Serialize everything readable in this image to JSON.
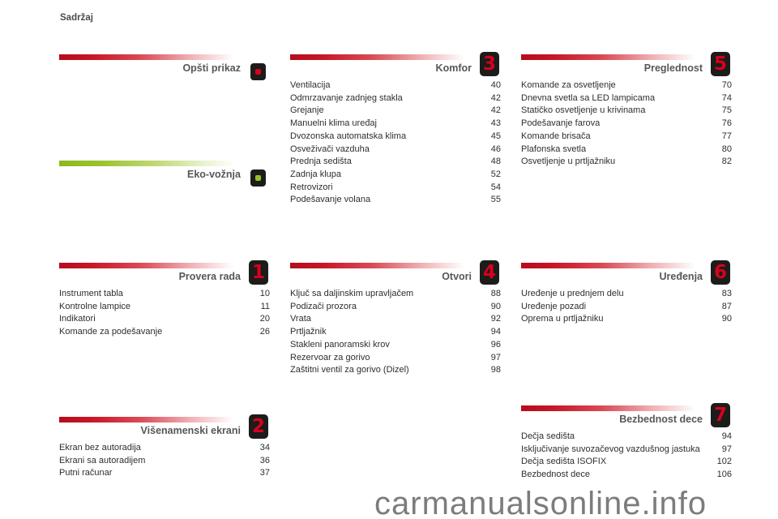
{
  "page": {
    "title": "Sadržaj",
    "watermark": "carmanualsonline.info"
  },
  "colors": {
    "accent_red": "#d8001f",
    "accent_green": "#95bf23",
    "badge_background": "#1c1c1a",
    "heading_text": "#57575a",
    "item_text": "#2e2e2e",
    "watermark_text": "#7c7c7c"
  },
  "sections": [
    {
      "id": "opsti-prikaz",
      "title": "Opšti prikaz",
      "badge": "",
      "accent": "red",
      "items": []
    },
    {
      "id": "eko-voznja",
      "title": "Eko-vožnja",
      "badge": "",
      "accent": "green",
      "items": []
    },
    {
      "id": "provera-rada",
      "title": "Provera rada",
      "badge": "1",
      "accent": "red",
      "items": [
        {
          "label": "Instrument tabla",
          "page": "10"
        },
        {
          "label": "Kontrolne lampice",
          "page": "11"
        },
        {
          "label": "Indikatori",
          "page": "20"
        },
        {
          "label": "Komande za podešavanje",
          "page": "26"
        }
      ]
    },
    {
      "id": "visenamenski-ekrani",
      "title": "Višenamenski ekrani",
      "badge": "2",
      "accent": "red",
      "items": [
        {
          "label": "Ekran bez autoradija",
          "page": "34"
        },
        {
          "label": "Ekrani sa autoradijem",
          "page": "36"
        },
        {
          "label": "Putni računar",
          "page": "37"
        }
      ]
    },
    {
      "id": "komfor",
      "title": "Komfor",
      "badge": "3",
      "accent": "red",
      "items": [
        {
          "label": "Ventilacija",
          "page": "40"
        },
        {
          "label": "Odmrzavanje zadnjeg stakla",
          "page": "42"
        },
        {
          "label": "Grejanje",
          "page": "42"
        },
        {
          "label": "Manuelni klima uređaj",
          "page": "43"
        },
        {
          "label": "Dvozonska automatska klima",
          "page": "45"
        },
        {
          "label": "Osveživači vazduha",
          "page": "46"
        },
        {
          "label": "Prednja sedišta",
          "page": "48"
        },
        {
          "label": "Zadnja klupa",
          "page": "52"
        },
        {
          "label": "Retrovizori",
          "page": "54"
        },
        {
          "label": "Podešavanje volana",
          "page": "55"
        }
      ]
    },
    {
      "id": "otvori",
      "title": "Otvori",
      "badge": "4",
      "accent": "red",
      "items": [
        {
          "label": "Ključ sa daljinskim upravljačem",
          "page": "88"
        },
        {
          "label": "Podizači prozora",
          "page": "90"
        },
        {
          "label": "Vrata",
          "page": "92"
        },
        {
          "label": "Prtljažnik",
          "page": "94"
        },
        {
          "label": "Stakleni panoramski krov",
          "page": "96"
        },
        {
          "label": "Rezervoar za gorivo",
          "page": "97"
        },
        {
          "label": "Zaštitni ventil za gorivo (Dizel)",
          "page": "98"
        }
      ]
    },
    {
      "id": "preglednost",
      "title": "Preglednost",
      "badge": "5",
      "accent": "red",
      "items": [
        {
          "label": "Komande za osvetljenje",
          "page": "70"
        },
        {
          "label": "Dnevna svetla sa LED lampicama",
          "page": "74"
        },
        {
          "label": "Statičko osvetljenje u krivinama",
          "page": "75"
        },
        {
          "label": "Podešavanje farova",
          "page": "76"
        },
        {
          "label": "Komande brisača",
          "page": "77"
        },
        {
          "label": "Plafonska svetla",
          "page": "80"
        },
        {
          "label": "Osvetljenje u prtljažniku",
          "page": "82"
        }
      ]
    },
    {
      "id": "uredjenja",
      "title": "Uređenja",
      "badge": "6",
      "accent": "red",
      "items": [
        {
          "label": "Uređenje u prednjem delu",
          "page": "83"
        },
        {
          "label": "Uređenje pozadi",
          "page": "87"
        },
        {
          "label": "Oprema u prtljažniku",
          "page": "90"
        }
      ]
    },
    {
      "id": "bezbednost-dece",
      "title": "Bezbednost dece",
      "badge": "7",
      "accent": "red",
      "items": [
        {
          "label": "Dečja sedišta",
          "page": "94"
        },
        {
          "label": "Isključivanje suvozačevog vazdušnog jastuka",
          "page": "97"
        },
        {
          "label": "Dečja sedišta ISOFIX",
          "page": "102"
        },
        {
          "label": "Bezbednost dece",
          "page": "106"
        }
      ]
    }
  ]
}
